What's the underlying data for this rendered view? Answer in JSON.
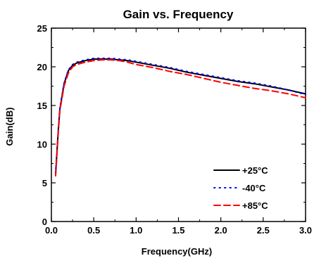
{
  "chart_data": {
    "type": "line",
    "title": "Gain vs. Frequency",
    "xlabel": "Frequency(GHz)",
    "ylabel": "Gain(dB)",
    "xlim": [
      0.0,
      3.0
    ],
    "ylim": [
      0,
      25
    ],
    "xticks": [
      "0.0",
      "0.5",
      "1.0",
      "1.5",
      "2.0",
      "2.5",
      "3.0"
    ],
    "yticks": [
      "0",
      "5",
      "10",
      "15",
      "20",
      "25"
    ],
    "grid": false,
    "legend_position": "bottom-right",
    "series": [
      {
        "name": "+25°C",
        "color": "#000000",
        "style": "solid",
        "x": [
          0.05,
          0.08,
          0.1,
          0.15,
          0.2,
          0.25,
          0.3,
          0.4,
          0.5,
          0.6,
          0.7,
          0.8,
          0.9,
          1.0,
          1.2,
          1.4,
          1.6,
          1.8,
          2.0,
          2.2,
          2.4,
          2.6,
          2.8,
          3.0
        ],
        "y": [
          6.2,
          11.5,
          14.5,
          17.8,
          19.5,
          20.2,
          20.5,
          20.8,
          21.0,
          21.0,
          21.0,
          20.9,
          20.8,
          20.6,
          20.2,
          19.8,
          19.3,
          18.9,
          18.5,
          18.1,
          17.8,
          17.4,
          17.0,
          16.5
        ]
      },
      {
        "name": "-40°C",
        "color": "#0000ff",
        "style": "dotted",
        "x": [
          0.05,
          0.08,
          0.1,
          0.15,
          0.2,
          0.25,
          0.3,
          0.4,
          0.5,
          0.6,
          0.7,
          0.8,
          0.9,
          1.0,
          1.2,
          1.4,
          1.6,
          1.8,
          2.0,
          2.2,
          2.4,
          2.6,
          2.8,
          3.0
        ],
        "y": [
          6.3,
          11.6,
          14.7,
          17.9,
          19.6,
          20.3,
          20.6,
          20.9,
          21.1,
          21.1,
          21.1,
          21.0,
          20.9,
          20.7,
          20.3,
          19.9,
          19.4,
          19.0,
          18.6,
          18.2,
          17.9,
          17.5,
          17.0,
          16.4
        ]
      },
      {
        "name": "+85°C",
        "color": "#ff0000",
        "style": "dashed",
        "x": [
          0.05,
          0.08,
          0.1,
          0.15,
          0.2,
          0.25,
          0.3,
          0.4,
          0.5,
          0.6,
          0.7,
          0.8,
          0.9,
          1.0,
          1.2,
          1.4,
          1.6,
          1.8,
          2.0,
          2.2,
          2.4,
          2.6,
          2.8,
          3.0
        ],
        "y": [
          5.9,
          11.2,
          14.3,
          17.5,
          19.2,
          20.0,
          20.3,
          20.6,
          20.8,
          20.9,
          20.9,
          20.8,
          20.6,
          20.3,
          19.9,
          19.4,
          19.0,
          18.5,
          18.0,
          17.6,
          17.2,
          16.9,
          16.5,
          16.0
        ]
      }
    ]
  }
}
